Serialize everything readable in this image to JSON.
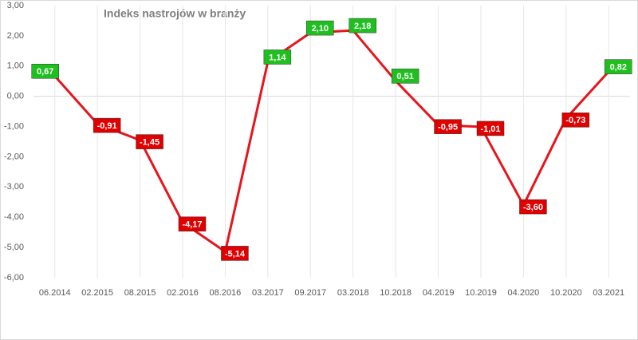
{
  "chart_data": {
    "type": "line",
    "title": "Indeks  nastrojów  w branży",
    "categories": [
      "06.2014",
      "02.2015",
      "08.2015",
      "02.2016",
      "08.2016",
      "03.2017",
      "09.2017",
      "03.2018",
      "10.2018",
      "04.2019",
      "10.2019",
      "04.2020",
      "10.2020",
      "03.2021"
    ],
    "series": [
      {
        "name": "Indeks nastrojów",
        "color": "#e8141b",
        "values": [
          0.67,
          -0.91,
          -1.45,
          -4.17,
          -5.14,
          1.14,
          2.1,
          2.18,
          0.51,
          -0.95,
          -1.01,
          -3.6,
          -0.73,
          0.82
        ],
        "value_labels": [
          "0,67",
          "-0,91",
          "-1,45",
          "-4,17",
          "-5,14",
          "1,14",
          "2,10",
          "2,18",
          "0,51",
          "-0,95",
          "-1,01",
          "-3,60",
          "-0,73",
          "0,82"
        ]
      }
    ],
    "ylim": [
      -6,
      3
    ],
    "yticks": [
      {
        "value": -6,
        "label": "-6,00"
      },
      {
        "value": -5,
        "label": "-5,00"
      },
      {
        "value": -4,
        "label": "-4,00"
      },
      {
        "value": -3,
        "label": "-3,00"
      },
      {
        "value": -2,
        "label": "-2,00"
      },
      {
        "value": -1,
        "label": "-1,00"
      },
      {
        "value": 0,
        "label": "0,00"
      },
      {
        "value": 1,
        "label": "1,00"
      },
      {
        "value": 2,
        "label": "2,00"
      },
      {
        "value": 3,
        "label": "3,00"
      }
    ],
    "grid": true,
    "positive_label_color": "#1fbf1f",
    "negative_label_color": "#e00000"
  }
}
